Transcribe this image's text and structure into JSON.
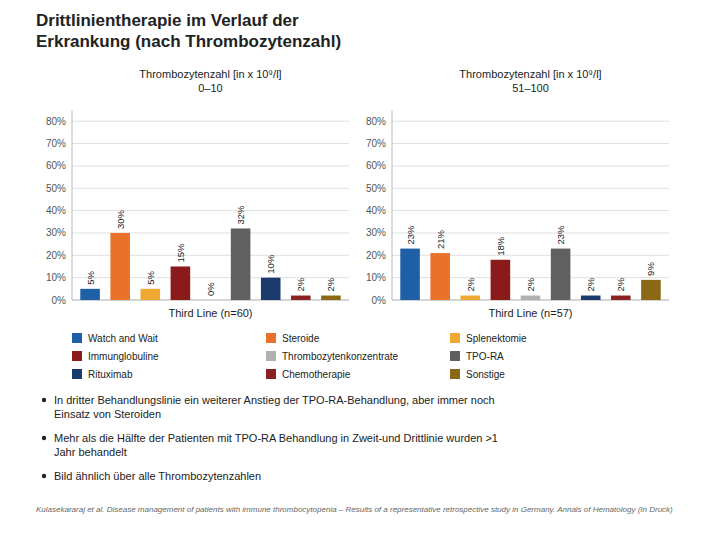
{
  "title": "Drittlinientherapie im Verlauf der\nErkrankung (nach Thrombozytenzahl)",
  "bullets": [
    "In dritter Behandlungslinie ein weiterer Anstieg der TPO-RA-Behandlung, aber immer noch\nEinsatz von Steroiden",
    "Mehr als die Hälfte der Patienten mit TPO-RA Behandlung in Zweit-und Drittlinie wurden >1\nJahr behandelt",
    "Bild ähnlich über alle Thrombozytenzahlen"
  ],
  "footnote": "Kulasekararaj et al. Disease management of patients with immune thrombocytopenia – Results of a representative retrospective study in Germany. Annals of Hematology (In Druck)",
  "chart_data": [
    {
      "type": "bar",
      "title": "Thrombozytenzahl [in x 10⁹/l]\n0–10",
      "x_label": "Third Line (n=60)",
      "categories": [
        "Watch and Wait",
        "Steroide",
        "Splenektomie",
        "Immunglobuline",
        "Thrombozytenkonzentrate",
        "TPO-RA",
        "Rituximab",
        "Chemotherapie",
        "Sonstige"
      ],
      "colors": [
        "#1f5fa6",
        "#e8722a",
        "#f0a830",
        "#8b1a1a",
        "#b0b0b0",
        "#606060",
        "#1a3a6e",
        "#8b2020",
        "#8b6914"
      ],
      "values": [
        0.05,
        0.3,
        0.05,
        0.15,
        0.0,
        0.32,
        0.1,
        0.02,
        0.02
      ],
      "value_labels": [
        "5%",
        "30%",
        "5%",
        "15%",
        "0%",
        "32%",
        "10%",
        "2%",
        "2%"
      ],
      "ylim": [
        0,
        0.85
      ],
      "yticks": [
        {
          "value": 0,
          "label": "0%"
        },
        {
          "value": 0.1,
          "label": "10%"
        },
        {
          "value": 0.2,
          "label": "20%"
        },
        {
          "value": 0.3,
          "label": "30%"
        },
        {
          "value": 0.4,
          "label": "40%"
        },
        {
          "value": 0.5,
          "label": "50%"
        },
        {
          "value": 0.6,
          "label": "60%"
        },
        {
          "value": 0.7,
          "label": "70%"
        },
        {
          "value": 0.8,
          "label": "80%"
        }
      ],
      "grid": true,
      "data_labels": true,
      "tick_labels": "y"
    },
    {
      "type": "bar",
      "title": "Thrombozytenzahl [in x 10⁹/l]\n51–100",
      "x_label": "Third Line (n=57)",
      "colors": [
        "#1f5fa6",
        "#e8722a",
        "#f0a830",
        "#8b1a1a",
        "#b0b0b0",
        "#606060",
        "#1a3a6e",
        "#8b2020",
        "#8b6914"
      ],
      "values": [
        0.23,
        0.21,
        0.02,
        0.18,
        0.02,
        0.23,
        0.02,
        0.02,
        0.09
      ],
      "value_labels": [
        "23%",
        "21%",
        "2%",
        "18%",
        "2%",
        "23%",
        "2%",
        "2%",
        "9%"
      ],
      "ylim": [
        0,
        0.85
      ],
      "yticks": [
        {
          "value": 0,
          "label": "0%"
        },
        {
          "value": 0.1,
          "label": "10%"
        },
        {
          "value": 0.2,
          "label": "20%"
        },
        {
          "value": 0.3,
          "label": "30%"
        },
        {
          "value": 0.4,
          "label": "40%"
        },
        {
          "value": 0.5,
          "label": "50%"
        },
        {
          "value": 0.6,
          "label": "60%"
        },
        {
          "value": 0.7,
          "label": "70%"
        },
        {
          "value": 0.8,
          "label": "80%"
        }
      ],
      "grid": true,
      "data_labels": true,
      "tick_labels": "y"
    }
  ]
}
